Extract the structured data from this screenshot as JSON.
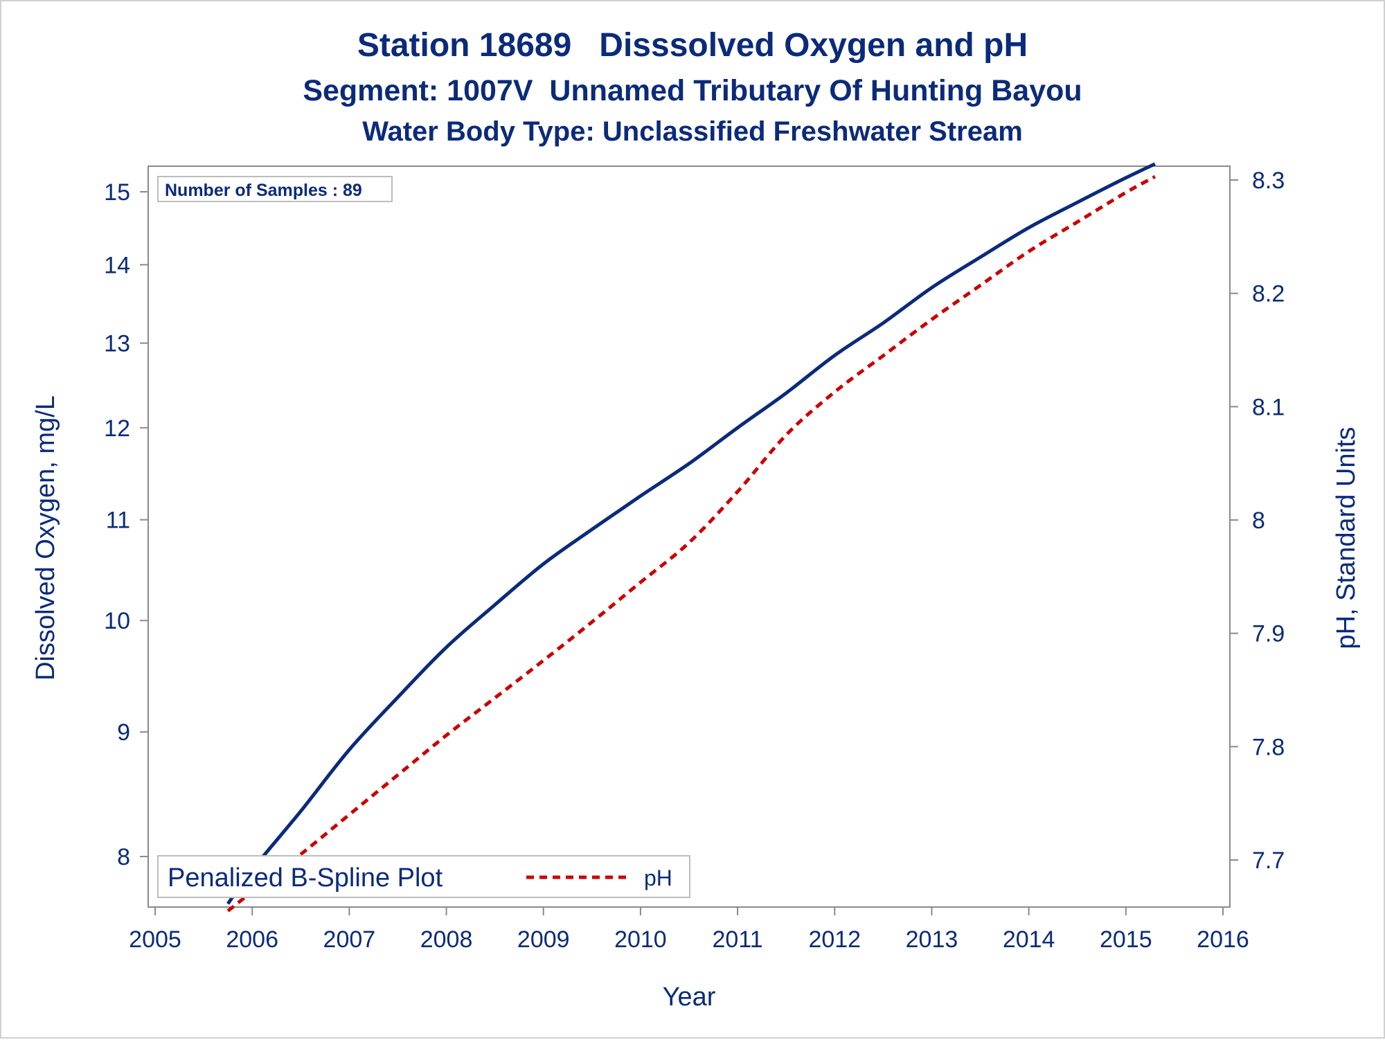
{
  "titles": {
    "line1": "Station 18689   Disssolved Oxygen and pH",
    "line2": "Segment: 1007V  Unnamed Tributary Of Hunting Bayou",
    "line3": "Water Body Type: Unclassified Freshwater Stream"
  },
  "inset": {
    "text": "Number of Samples : 89"
  },
  "legend": {
    "title": "Penalized B-Spline Plot",
    "item_label": "pH"
  },
  "colors": {
    "text": "#0b2b7a",
    "do_line": "#0b2b7a",
    "ph_line": "#cc0000",
    "axis": "#8a8a8a",
    "frame": "#d0d0d0"
  },
  "chart_data": {
    "type": "line",
    "xlabel": "Year",
    "ylabel_left": "Dissolved Oxygen, mg/L",
    "ylabel_right": "pH, Standard Units",
    "x_ticks": [
      "2005",
      "2006",
      "2007",
      "2008",
      "2009",
      "2010",
      "2011",
      "2012",
      "2013",
      "2014",
      "2015",
      "2016"
    ],
    "x_range": [
      2005,
      2016
    ],
    "y_left_ticks": [
      8,
      9,
      10,
      11,
      12,
      13,
      14,
      15
    ],
    "y_left_range": [
      7.6,
      15.4
    ],
    "y_left_scale": "log",
    "y_right_ticks": [
      "7.7",
      "7.8",
      "7.9",
      "8",
      "8.1",
      "8.2",
      "8.3"
    ],
    "y_right_range": [
      7.655,
      8.31
    ],
    "legend_position": "bottom-left",
    "grid": false,
    "series": [
      {
        "axis": "left",
        "style": "solid",
        "x": [
          2005.75,
          2006.0,
          2006.5,
          2007.0,
          2007.5,
          2008.0,
          2008.5,
          2009.0,
          2009.5,
          2010.0,
          2010.5,
          2011.0,
          2011.5,
          2012.0,
          2012.5,
          2013.0,
          2013.5,
          2014.0,
          2014.5,
          2015.0,
          2015.3
        ],
        "values": [
          7.65,
          7.9,
          8.35,
          8.85,
          9.3,
          9.75,
          10.15,
          10.55,
          10.9,
          11.25,
          11.6,
          12.0,
          12.4,
          12.85,
          13.25,
          13.7,
          14.1,
          14.5,
          14.85,
          15.2,
          15.4
        ]
      },
      {
        "name": "pH",
        "axis": "right",
        "style": "dashed",
        "x": [
          2005.75,
          2006.0,
          2006.5,
          2007.0,
          2007.5,
          2008.0,
          2008.5,
          2009.0,
          2009.5,
          2010.0,
          2010.5,
          2011.0,
          2011.5,
          2012.0,
          2012.5,
          2013.0,
          2013.5,
          2014.0,
          2014.5,
          2015.0,
          2015.3
        ],
        "values": [
          7.655,
          7.672,
          7.705,
          7.74,
          7.775,
          7.81,
          7.843,
          7.876,
          7.91,
          7.945,
          7.98,
          8.025,
          8.075,
          8.113,
          8.145,
          8.177,
          8.207,
          8.237,
          8.263,
          8.289,
          8.303
        ]
      }
    ]
  }
}
